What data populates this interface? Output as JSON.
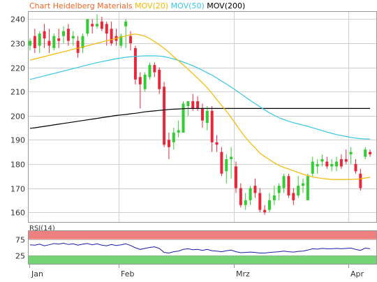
{
  "chart_data": {
    "type": "candlestick",
    "title": "Chart Heidelberg Materials",
    "indicators": [
      "MOV(20)",
      "MOV(50)",
      "MOV(200)"
    ],
    "colors": {
      "title": "#f26522",
      "mov20": "#f5b800",
      "mov50": "#39c6e8",
      "mov200": "#000000",
      "up": "#33cc33",
      "down": "#e8283a",
      "rsi_line": "#1a1aaa",
      "rsi_overbought": "#ef8080",
      "rsi_oversold": "#73d473",
      "grid": "#d0d0d0",
      "frame": "#999999"
    },
    "y_ticks": [
      160,
      170,
      180,
      190,
      200,
      210,
      220,
      230,
      240
    ],
    "ylim": [
      156,
      243
    ],
    "x_labels": [
      "Jan",
      "Feb",
      "Mrz",
      "Apr"
    ],
    "candles": [
      {
        "o": 229,
        "h": 232,
        "l": 227,
        "c": 231
      },
      {
        "o": 233,
        "h": 236,
        "l": 226,
        "c": 228
      },
      {
        "o": 229,
        "h": 235,
        "l": 226,
        "c": 234
      },
      {
        "o": 235,
        "h": 238,
        "l": 228,
        "c": 232
      },
      {
        "o": 231,
        "h": 236,
        "l": 226,
        "c": 229
      },
      {
        "o": 228,
        "h": 234,
        "l": 227,
        "c": 233
      },
      {
        "o": 232,
        "h": 236,
        "l": 228,
        "c": 231
      },
      {
        "o": 233,
        "h": 237,
        "l": 230,
        "c": 235
      },
      {
        "o": 236,
        "h": 238,
        "l": 229,
        "c": 231
      },
      {
        "o": 232,
        "h": 235,
        "l": 229,
        "c": 233
      },
      {
        "o": 231,
        "h": 233,
        "l": 224,
        "c": 226
      },
      {
        "o": 228,
        "h": 234,
        "l": 226,
        "c": 233
      },
      {
        "o": 234,
        "h": 240,
        "l": 233,
        "c": 240
      },
      {
        "o": 238,
        "h": 240,
        "l": 234,
        "c": 237
      },
      {
        "o": 237,
        "h": 242,
        "l": 236,
        "c": 238
      },
      {
        "o": 239,
        "h": 241,
        "l": 235,
        "c": 236
      },
      {
        "o": 238,
        "h": 239,
        "l": 229,
        "c": 234
      },
      {
        "o": 236,
        "h": 239,
        "l": 229,
        "c": 230
      },
      {
        "o": 233,
        "h": 236,
        "l": 229,
        "c": 231
      },
      {
        "o": 229,
        "h": 234,
        "l": 228,
        "c": 233
      },
      {
        "o": 237,
        "h": 240,
        "l": 228,
        "c": 239
      },
      {
        "o": 233,
        "h": 235,
        "l": 227,
        "c": 230
      },
      {
        "o": 228,
        "h": 229,
        "l": 213,
        "c": 215
      },
      {
        "o": 216,
        "h": 218,
        "l": 203,
        "c": 213
      },
      {
        "o": 211,
        "h": 218,
        "l": 210,
        "c": 217
      },
      {
        "o": 216,
        "h": 222,
        "l": 215,
        "c": 221
      },
      {
        "o": 221,
        "h": 222,
        "l": 216,
        "c": 218
      },
      {
        "o": 219,
        "h": 220,
        "l": 209,
        "c": 211
      },
      {
        "o": 212,
        "h": 214,
        "l": 187,
        "c": 188
      },
      {
        "o": 190,
        "h": 193,
        "l": 182,
        "c": 187
      },
      {
        "o": 189,
        "h": 195,
        "l": 186,
        "c": 193
      },
      {
        "o": 193,
        "h": 198,
        "l": 191,
        "c": 194
      },
      {
        "o": 193,
        "h": 206,
        "l": 193,
        "c": 205
      },
      {
        "o": 204,
        "h": 206,
        "l": 200,
        "c": 206
      },
      {
        "o": 206,
        "h": 209,
        "l": 202,
        "c": 203
      },
      {
        "o": 206,
        "h": 208,
        "l": 202,
        "c": 203
      },
      {
        "o": 203,
        "h": 205,
        "l": 195,
        "c": 198
      },
      {
        "o": 197,
        "h": 204,
        "l": 194,
        "c": 202
      },
      {
        "o": 202,
        "h": 204,
        "l": 185,
        "c": 189
      },
      {
        "o": 189,
        "h": 192,
        "l": 185,
        "c": 188
      },
      {
        "o": 185,
        "h": 187,
        "l": 175,
        "c": 176
      },
      {
        "o": 177,
        "h": 184,
        "l": 172,
        "c": 182
      },
      {
        "o": 182,
        "h": 187,
        "l": 174,
        "c": 183
      },
      {
        "o": 179,
        "h": 181,
        "l": 168,
        "c": 170
      },
      {
        "o": 170,
        "h": 172,
        "l": 162,
        "c": 163
      },
      {
        "o": 163,
        "h": 168,
        "l": 161,
        "c": 165
      },
      {
        "o": 165,
        "h": 171,
        "l": 163,
        "c": 170
      },
      {
        "o": 171,
        "h": 174,
        "l": 166,
        "c": 168
      },
      {
        "o": 168,
        "h": 170,
        "l": 160,
        "c": 161
      },
      {
        "o": 161,
        "h": 163,
        "l": 159,
        "c": 160
      },
      {
        "o": 161,
        "h": 168,
        "l": 160,
        "c": 165
      },
      {
        "o": 165,
        "h": 171,
        "l": 163,
        "c": 167
      },
      {
        "o": 168,
        "h": 172,
        "l": 165,
        "c": 171
      },
      {
        "o": 170,
        "h": 176,
        "l": 168,
        "c": 175
      },
      {
        "o": 175,
        "h": 176,
        "l": 166,
        "c": 167
      },
      {
        "o": 168,
        "h": 170,
        "l": 163,
        "c": 165
      },
      {
        "o": 167,
        "h": 175,
        "l": 166,
        "c": 171
      },
      {
        "o": 171,
        "h": 174,
        "l": 168,
        "c": 172
      },
      {
        "o": 165,
        "h": 176,
        "l": 165,
        "c": 175
      },
      {
        "o": 176,
        "h": 183,
        "l": 175,
        "c": 181
      },
      {
        "o": 179,
        "h": 182,
        "l": 176,
        "c": 180
      },
      {
        "o": 181,
        "h": 184,
        "l": 179,
        "c": 182
      },
      {
        "o": 181,
        "h": 183,
        "l": 178,
        "c": 179
      },
      {
        "o": 179,
        "h": 182,
        "l": 177,
        "c": 180
      },
      {
        "o": 179,
        "h": 183,
        "l": 177,
        "c": 181
      },
      {
        "o": 182,
        "h": 184,
        "l": 178,
        "c": 179
      },
      {
        "o": 182,
        "h": 186,
        "l": 180,
        "c": 181
      },
      {
        "o": 184,
        "h": 187,
        "l": 180,
        "c": 185
      },
      {
        "o": 180,
        "h": 182,
        "l": 176,
        "c": 177
      },
      {
        "o": 176,
        "h": 178,
        "l": 169,
        "c": 170
      },
      {
        "o": 183,
        "h": 187,
        "l": 182,
        "c": 186
      },
      {
        "o": 185,
        "h": 186,
        "l": 183,
        "c": 184
      }
    ],
    "mov20": [
      223,
      223.5,
      224,
      224.5,
      225,
      225.5,
      226,
      226.5,
      227,
      227.5,
      228,
      228.5,
      229,
      229.5,
      230,
      230.5,
      231,
      231.5,
      232,
      232.5,
      233,
      233.6,
      233.8,
      233.5,
      232.9,
      232,
      230.7,
      229.4,
      227.9,
      226.3,
      224.4,
      222.8,
      221,
      219.2,
      217.4,
      215.5,
      213.6,
      211.6,
      209.2,
      206.7,
      204.2,
      201.9,
      199.2,
      196.5,
      193.6,
      191,
      188.7,
      186.7,
      184.5,
      183.1,
      181.8,
      180.5,
      179.4,
      178.6,
      177.9,
      177.2,
      176.5,
      175.8,
      175.2,
      174.7,
      174.3,
      174,
      173.8,
      173.6,
      173.6,
      173.6,
      173.6,
      173.6,
      173.7,
      173.9,
      174.2,
      174.5
    ],
    "mov50": [
      215,
      215.5,
      216,
      216.5,
      217,
      217.5,
      218,
      218.5,
      219,
      219.5,
      220,
      220.5,
      221,
      221.5,
      222,
      222.4,
      222.8,
      223.2,
      223.6,
      223.9,
      224.2,
      224.4,
      224.6,
      224.7,
      224.8,
      224.8,
      224.8,
      224.7,
      224.5,
      224,
      223.5,
      222.9,
      222.2,
      221.5,
      220.7,
      219.8,
      218.8,
      217.8,
      216.8,
      215.6,
      214.3,
      213.1,
      211.8,
      210.5,
      209.1,
      207.7,
      206.3,
      205,
      203.7,
      202.4,
      201.2,
      200.1,
      199.2,
      198.4,
      197.7,
      197.1,
      196.6,
      196.1,
      195.6,
      195,
      194.4,
      193.8,
      193.2,
      192.7,
      192.2,
      191.8,
      191.4,
      191,
      190.7,
      190.5,
      190.4,
      190.3
    ],
    "mov200": [
      194.8,
      195,
      195.3,
      195.6,
      195.9,
      196.2,
      196.5,
      196.8,
      197.1,
      197.4,
      197.7,
      198,
      198.3,
      198.6,
      198.9,
      199.2,
      199.5,
      199.8,
      200.1,
      200.3,
      200.5,
      200.8,
      201,
      201.3,
      201.6,
      201.8,
      202,
      202.2,
      202.4,
      202.6,
      202.7,
      202.8,
      202.9,
      203,
      203,
      203,
      203,
      203,
      203,
      203,
      203,
      203,
      203,
      203,
      203,
      203,
      203,
      203,
      203,
      203,
      203,
      203,
      203,
      203,
      203,
      203,
      203,
      203,
      203,
      203,
      203,
      203,
      203,
      203,
      203,
      203,
      203,
      203,
      203,
      203,
      203,
      203
    ],
    "rsi": {
      "label": "RSI(14)",
      "y_ticks": [
        25,
        75
      ],
      "ylim": [
        0,
        100
      ],
      "overbought": 75,
      "oversold": 25,
      "values": [
        58,
        57,
        60,
        55,
        58,
        62,
        60,
        63,
        59,
        61,
        57,
        60,
        62,
        58,
        61,
        57,
        55,
        59,
        56,
        58,
        61,
        56,
        49,
        44,
        47,
        50,
        52,
        47,
        35,
        33,
        37,
        39,
        44,
        46,
        43,
        44,
        41,
        44,
        40,
        39,
        37,
        40,
        42,
        37,
        34,
        35,
        36,
        35,
        33,
        33,
        35,
        36,
        37,
        39,
        37,
        36,
        38,
        39,
        42,
        46,
        45,
        47,
        46,
        46,
        47,
        46,
        47,
        48,
        44,
        41,
        48,
        46
      ]
    }
  }
}
